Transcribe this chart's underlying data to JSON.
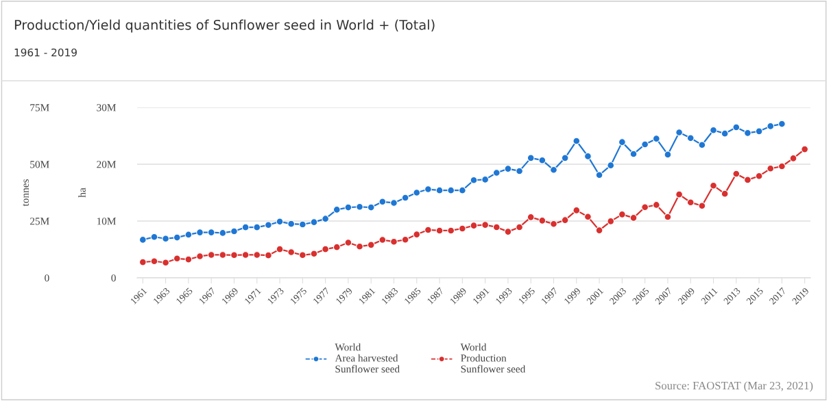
{
  "chart_data": {
    "type": "line",
    "title": "Production/Yield quantities of Sunflower seed in World + (Total)",
    "subtitle": "1961 - 2019",
    "ylabel": "ha",
    "y2label": "tonnes",
    "x": [
      1961,
      1962,
      1963,
      1964,
      1965,
      1966,
      1967,
      1968,
      1969,
      1970,
      1971,
      1972,
      1973,
      1974,
      1975,
      1976,
      1977,
      1978,
      1979,
      1980,
      1981,
      1982,
      1983,
      1984,
      1985,
      1986,
      1987,
      1988,
      1989,
      1990,
      1991,
      1992,
      1993,
      1994,
      1995,
      1996,
      1997,
      1998,
      1999,
      2000,
      2001,
      2002,
      2003,
      2004,
      2005,
      2006,
      2007,
      2008,
      2009,
      2010,
      2011,
      2012,
      2013,
      2014,
      2015,
      2016,
      2017,
      2018,
      2019
    ],
    "series": [
      {
        "name": "World\nArea harvested\nSunflower seed",
        "color": "#1f77d4",
        "axis": "y",
        "values": [
          6.7,
          7.2,
          6.9,
          7.1,
          7.6,
          8.0,
          8.0,
          7.9,
          8.2,
          8.9,
          8.9,
          9.3,
          9.9,
          9.5,
          9.4,
          9.8,
          10.4,
          12.0,
          12.4,
          12.5,
          12.4,
          13.4,
          13.2,
          14.1,
          15.0,
          15.6,
          15.4,
          15.4,
          15.4,
          17.2,
          17.3,
          18.5,
          19.2,
          18.8,
          21.1,
          20.7,
          19.0,
          21.1,
          24.1,
          21.4,
          18.1,
          19.8,
          23.9,
          21.8,
          23.5,
          24.5,
          21.7,
          25.6,
          24.6,
          23.4,
          26.0,
          25.4,
          26.5,
          25.5,
          25.8,
          26.7,
          27.1,
          null,
          null
        ]
      },
      {
        "name": "World\nProduction\nSunflower seed",
        "color": "#d8302f",
        "axis": "y2",
        "values": [
          6.9,
          7.3,
          6.7,
          8.5,
          8.1,
          9.5,
          10.1,
          10.1,
          10.0,
          10.1,
          10.1,
          9.9,
          12.6,
          11.3,
          10.0,
          10.6,
          12.6,
          13.5,
          15.5,
          13.8,
          14.5,
          16.7,
          15.9,
          16.8,
          19.1,
          21.1,
          20.8,
          20.8,
          21.7,
          23.0,
          23.3,
          22.3,
          20.3,
          22.3,
          26.7,
          25.2,
          23.7,
          25.4,
          29.7,
          26.9,
          20.9,
          24.9,
          27.9,
          26.4,
          31.1,
          32.1,
          26.8,
          36.7,
          33.2,
          31.7,
          40.6,
          37.0,
          45.8,
          43.1,
          44.8,
          48.1,
          49.1,
          52.6,
          56.6
        ]
      }
    ],
    "xlim": [
      1960.5,
      2019.5
    ],
    "xticks": [
      1961,
      1963,
      1965,
      1967,
      1969,
      1971,
      1973,
      1975,
      1977,
      1979,
      1981,
      1983,
      1985,
      1987,
      1989,
      1991,
      1993,
      1995,
      1997,
      1999,
      2001,
      2003,
      2005,
      2007,
      2009,
      2011,
      2013,
      2015,
      2017,
      2019
    ],
    "ylim": [
      0,
      30
    ],
    "yticks": [
      0,
      {
        "value": 10,
        "label": "10M"
      },
      {
        "value": 20,
        "label": "20M"
      },
      {
        "value": 30,
        "label": "30M"
      }
    ],
    "y2lim": [
      0,
      75
    ],
    "y2ticks": [
      0,
      {
        "value": 25,
        "label": "25M"
      },
      {
        "value": 50,
        "label": "50M"
      },
      {
        "value": 75,
        "label": "75M"
      }
    ],
    "grid": "y",
    "legend": "bottom",
    "marker": "circle",
    "line_style": "solid",
    "annotations": [
      "Source: FAOSTAT (Mar 23, 2021)"
    ]
  }
}
